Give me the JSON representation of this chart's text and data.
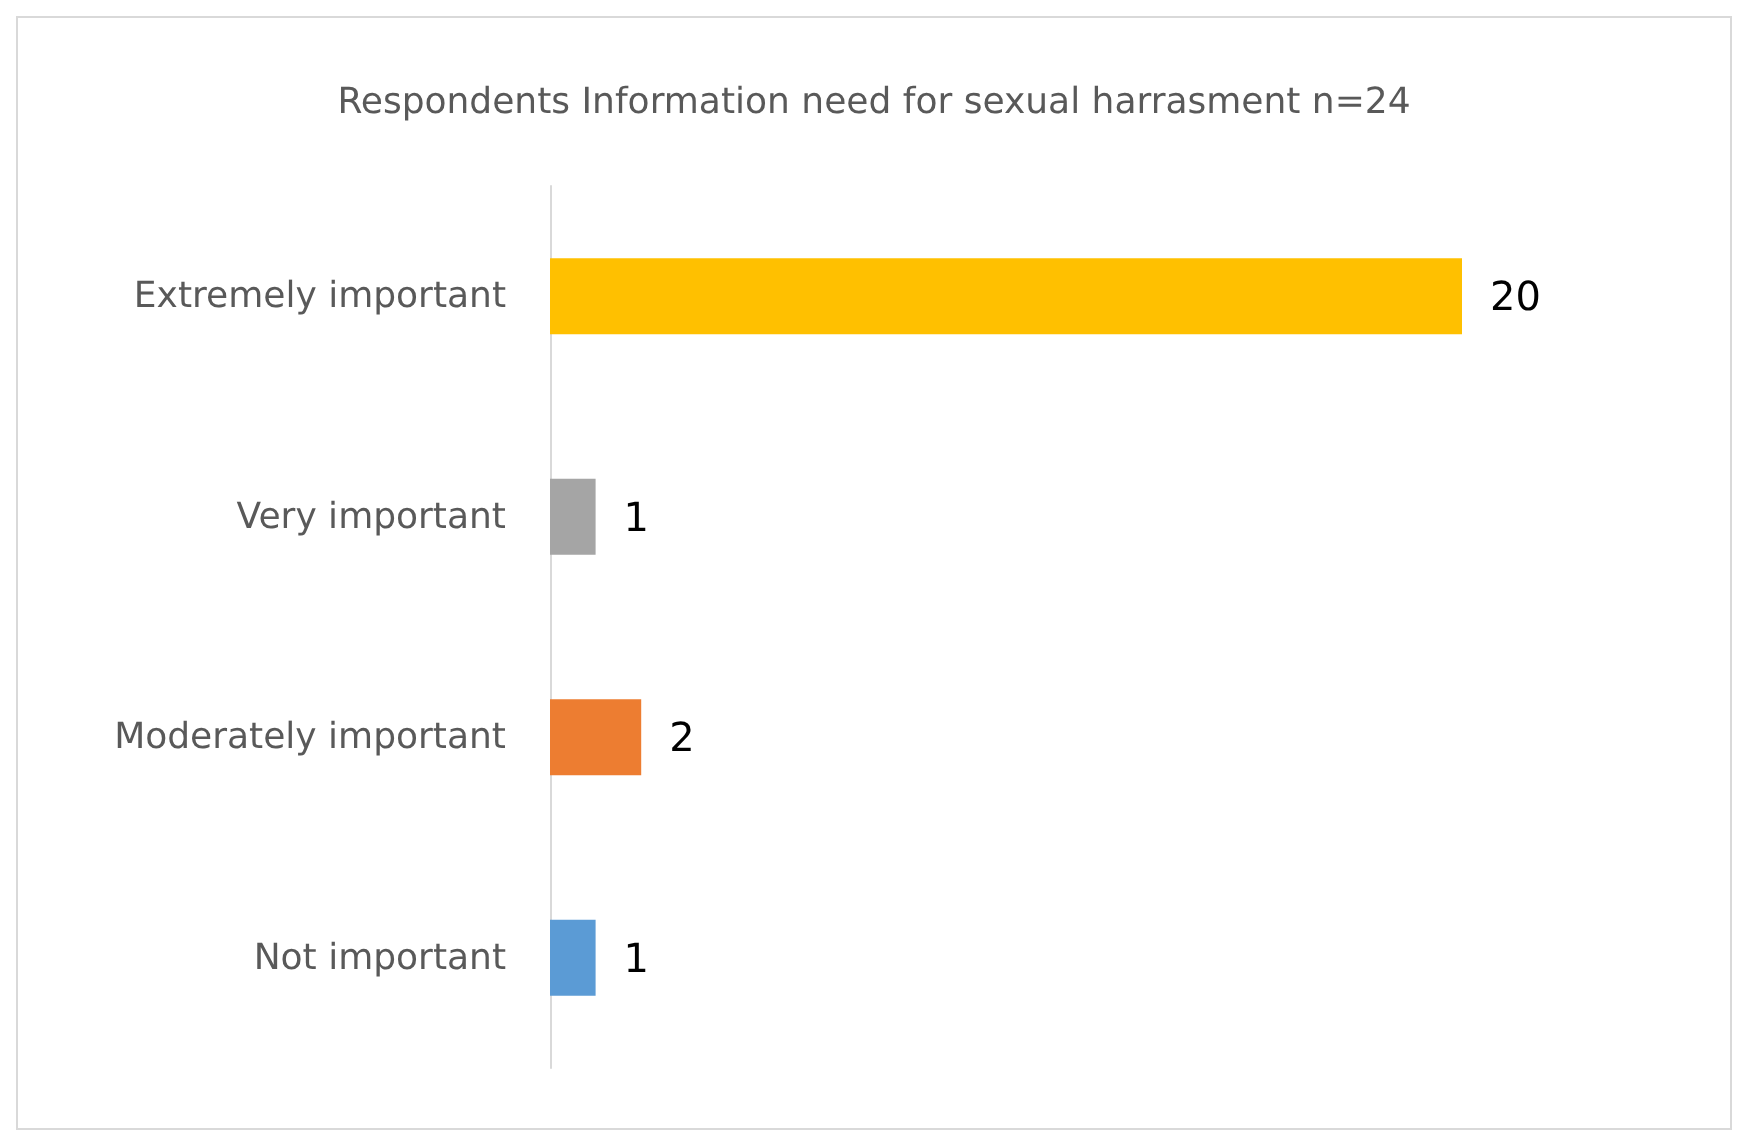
{
  "chart_data": {
    "type": "bar",
    "orientation": "horizontal",
    "title": "Respondents Information need for sexual harrasment n=24",
    "categories": [
      "Extremely important",
      "Very important",
      "Moderately important",
      "Not important"
    ],
    "values": [
      20,
      1,
      2,
      1
    ],
    "colors": [
      "#ffc000",
      "#a5a5a5",
      "#ed7d31",
      "#5b9bd5"
    ],
    "data_labels": true
  }
}
